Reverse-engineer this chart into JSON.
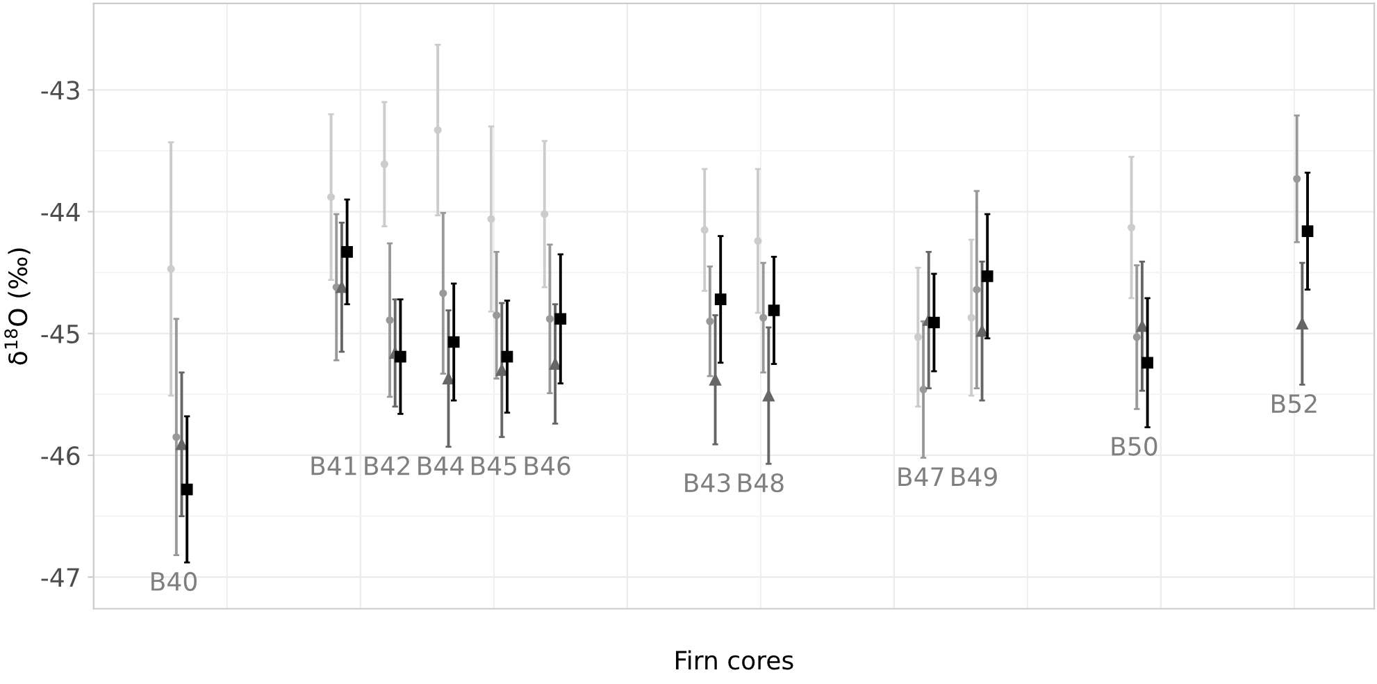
{
  "chart_data": {
    "type": "scatter",
    "xlabel": "Firn cores",
    "ylabel": "δ$^{18}$O (‰)",
    "categories": [
      null,
      null,
      null,
      null,
      null,
      null,
      null,
      null,
      null,
      null,
      null,
      null,
      null,
      null,
      null,
      null,
      null,
      null,
      null,
      null,
      null,
      null,
      null,
      null
    ],
    "ylim": [
      -47.26,
      -42.29
    ],
    "yticks": [
      -47,
      -46,
      -45,
      -44,
      -43
    ],
    "grid": true,
    "series": [
      {
        "color": "#cccccc",
        "marker": "circle",
        "values": [
          null,
          -44.47,
          null,
          null,
          -43.88,
          -43.61,
          -43.33,
          -44.06,
          -44.02,
          null,
          null,
          -44.15,
          -44.24,
          null,
          null,
          -45.03,
          -44.87,
          null,
          null,
          -44.13,
          null,
          null,
          null,
          null
        ],
        "errors": [
          null,
          1.04,
          null,
          null,
          0.68,
          0.51,
          0.7,
          0.76,
          0.6,
          null,
          null,
          0.5,
          0.59,
          null,
          null,
          0.57,
          0.64,
          null,
          null,
          0.58,
          null,
          null,
          null,
          null
        ]
      },
      {
        "color": "#999999",
        "marker": "circle",
        "values": [
          null,
          -45.85,
          null,
          null,
          -44.62,
          -44.89,
          -44.67,
          -44.85,
          -44.88,
          null,
          null,
          -44.9,
          -44.87,
          null,
          null,
          -45.46,
          -44.64,
          null,
          null,
          -45.03,
          null,
          null,
          -43.73,
          null
        ],
        "errors": [
          null,
          0.97,
          null,
          null,
          0.6,
          0.63,
          0.66,
          0.52,
          0.61,
          null,
          null,
          0.45,
          0.45,
          null,
          null,
          0.56,
          0.81,
          null,
          null,
          0.59,
          null,
          null,
          0.52,
          null
        ]
      },
      {
        "color": "#666666",
        "marker": "triangle",
        "values": [
          null,
          -45.91,
          null,
          null,
          -44.62,
          -45.16,
          -45.37,
          -45.3,
          -45.25,
          null,
          null,
          -45.38,
          -45.51,
          null,
          null,
          -44.89,
          -44.98,
          null,
          null,
          -44.94,
          null,
          null,
          -44.92,
          null
        ],
        "errors": [
          null,
          0.59,
          null,
          null,
          0.53,
          0.44,
          0.56,
          0.55,
          0.49,
          null,
          null,
          0.53,
          0.56,
          null,
          null,
          0.56,
          0.57,
          null,
          null,
          0.53,
          null,
          null,
          0.5,
          null
        ]
      },
      {
        "color": "#000000",
        "marker": "square",
        "values": [
          null,
          -46.28,
          null,
          null,
          -44.33,
          -45.19,
          -45.07,
          -45.19,
          -44.88,
          null,
          null,
          -44.72,
          -44.81,
          null,
          null,
          -44.91,
          -44.53,
          null,
          null,
          -45.24,
          null,
          null,
          -44.16,
          null
        ],
        "errors": [
          null,
          0.6,
          null,
          null,
          0.43,
          0.47,
          0.48,
          0.46,
          0.53,
          null,
          null,
          0.52,
          0.44,
          null,
          null,
          0.4,
          0.51,
          null,
          null,
          0.53,
          null,
          null,
          0.48,
          null
        ]
      }
    ],
    "annotations": [
      "B40",
      "B41",
      "B42",
      "B44",
      "B45",
      "B46",
      "B43",
      "B48",
      "B47",
      "B49",
      "B50",
      "B52"
    ]
  }
}
